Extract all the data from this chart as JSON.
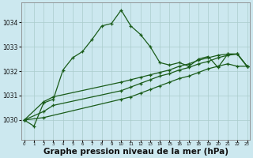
{
  "background_color": "#cce8ef",
  "grid_color": "#aacccc",
  "line_color": "#1a5c1a",
  "xlabel": "Graphe pression niveau de la mer (hPa)",
  "xlabel_fontsize": 7.5,
  "yticks": [
    1030,
    1031,
    1032,
    1033,
    1034
  ],
  "xticks": [
    0,
    1,
    2,
    3,
    4,
    5,
    6,
    7,
    8,
    9,
    10,
    11,
    12,
    13,
    14,
    15,
    16,
    17,
    18,
    19,
    20,
    21,
    22,
    23
  ],
  "ylim": [
    1029.2,
    1034.8
  ],
  "xlim": [
    -0.3,
    23.3
  ],
  "line1_x": [
    0,
    1,
    2,
    3,
    4,
    5,
    6,
    7,
    8,
    9,
    10,
    11,
    12,
    13,
    14,
    15,
    16,
    17,
    18,
    19,
    20,
    21,
    22,
    23
  ],
  "line1_y": [
    1030.0,
    1029.75,
    1030.7,
    1030.85,
    1032.05,
    1032.55,
    1032.8,
    1033.3,
    1033.85,
    1033.95,
    1034.5,
    1033.85,
    1033.5,
    1033.0,
    1032.35,
    1032.25,
    1032.35,
    1032.2,
    1032.5,
    1032.6,
    1032.15,
    1032.7,
    1032.7,
    1032.2
  ],
  "line2_x": [
    0,
    2,
    3,
    10,
    11,
    12,
    13,
    14,
    15,
    16,
    17,
    18,
    19,
    20,
    21,
    22,
    23
  ],
  "line2_y": [
    1030.0,
    1030.75,
    1030.95,
    1031.55,
    1031.65,
    1031.75,
    1031.85,
    1031.95,
    1032.05,
    1032.2,
    1032.3,
    1032.45,
    1032.55,
    1032.65,
    1032.7,
    1032.7,
    1032.2
  ],
  "line3_x": [
    0,
    2,
    3,
    10,
    11,
    12,
    13,
    14,
    15,
    16,
    17,
    18,
    19,
    20,
    21,
    22,
    23
  ],
  "line3_y": [
    1030.0,
    1030.35,
    1030.6,
    1031.2,
    1031.35,
    1031.5,
    1031.65,
    1031.8,
    1031.9,
    1032.05,
    1032.15,
    1032.3,
    1032.4,
    1032.55,
    1032.65,
    1032.7,
    1032.2
  ],
  "line4_x": [
    0,
    2,
    10,
    11,
    12,
    13,
    14,
    15,
    16,
    17,
    18,
    19,
    20,
    21,
    22,
    23
  ],
  "line4_y": [
    1030.0,
    1030.1,
    1030.85,
    1030.95,
    1031.1,
    1031.25,
    1031.4,
    1031.55,
    1031.7,
    1031.8,
    1031.95,
    1032.1,
    1032.2,
    1032.3,
    1032.2,
    1032.2
  ]
}
